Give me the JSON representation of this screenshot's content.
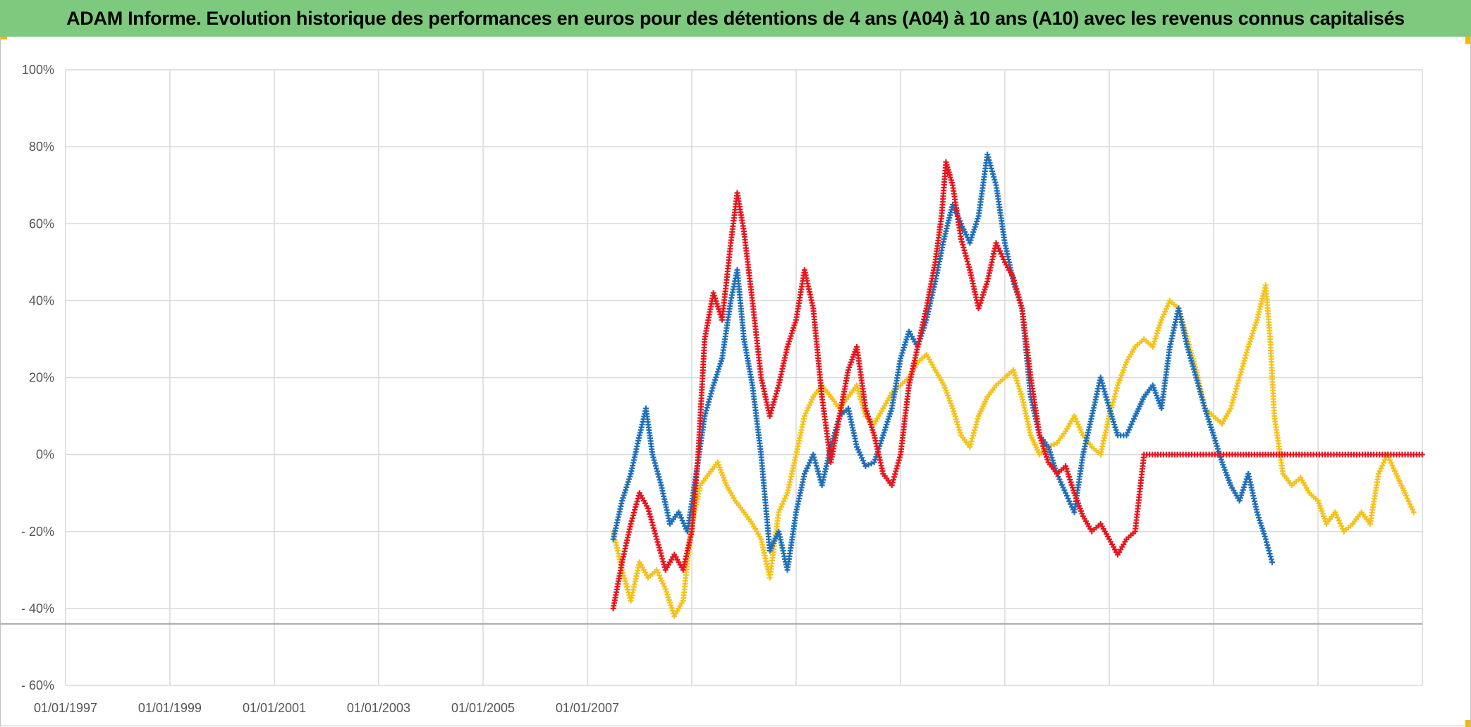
{
  "title": "ADAM Informe. Evolution historique des performances en euros pour des détentions de 4 ans (A04) à 10 ans (A10) avec les revenus connus capitalisés",
  "colors": {
    "title_bg": "#7dc97d",
    "accent_corner": "#f2b800",
    "series_red": "#e8141c",
    "series_blue": "#1f6fb8",
    "series_yellow": "#f5c21b",
    "grid": "#d9d9d9",
    "reference_line": "#a6a6a6"
  },
  "chart_data": {
    "type": "scatter",
    "marker": "plus",
    "title": "ADAM Informe. Evolution historique des performances en euros pour des détentions de 4 ans (A04) à 10 ans (A10) avec les revenus connus capitalisés",
    "xlabel": "",
    "ylabel": "",
    "x_tick_labels": [
      "01/01/1997",
      "01/01/1999",
      "01/01/2001",
      "01/01/2003",
      "01/01/2005",
      "01/01/2007"
    ],
    "xlim": [
      "1997-01-01",
      "2023-01-01"
    ],
    "x_gridlines_years": [
      1997,
      1999,
      2001,
      2003,
      2005,
      2007,
      2009,
      2011,
      2013,
      2015,
      2017,
      2019,
      2021,
      2023
    ],
    "y_tick_labels": [
      "100%",
      "80%",
      "60%",
      "40%",
      "20%",
      "0%",
      "- 20%",
      "- 40%",
      "- 60%"
    ],
    "y_ticks": [
      100,
      80,
      60,
      40,
      20,
      0,
      -20,
      -40,
      -60
    ],
    "ylim": [
      -60,
      100
    ],
    "grid": true,
    "legend": "none",
    "reference_line_y": -44,
    "series": [
      {
        "color": "#e8141c",
        "points": [
          [
            "2007-07-01",
            -40
          ],
          [
            "2007-09-01",
            -28
          ],
          [
            "2007-11-01",
            -18
          ],
          [
            "2008-01-01",
            -10
          ],
          [
            "2008-03-01",
            -14
          ],
          [
            "2008-05-01",
            -22
          ],
          [
            "2008-07-01",
            -30
          ],
          [
            "2008-09-01",
            -26
          ],
          [
            "2008-11-01",
            -30
          ],
          [
            "2009-01-01",
            -20
          ],
          [
            "2009-02-15",
            0
          ],
          [
            "2009-04-01",
            30
          ],
          [
            "2009-06-01",
            42
          ],
          [
            "2009-08-01",
            35
          ],
          [
            "2009-10-01",
            55
          ],
          [
            "2009-11-15",
            68
          ],
          [
            "2010-01-01",
            58
          ],
          [
            "2010-03-01",
            40
          ],
          [
            "2010-05-01",
            20
          ],
          [
            "2010-07-01",
            10
          ],
          [
            "2010-09-01",
            18
          ],
          [
            "2010-11-01",
            28
          ],
          [
            "2011-01-01",
            35
          ],
          [
            "2011-03-01",
            48
          ],
          [
            "2011-05-01",
            38
          ],
          [
            "2011-07-01",
            15
          ],
          [
            "2011-09-01",
            -2
          ],
          [
            "2011-11-01",
            10
          ],
          [
            "2012-01-01",
            22
          ],
          [
            "2012-03-01",
            28
          ],
          [
            "2012-05-01",
            12
          ],
          [
            "2012-07-01",
            5
          ],
          [
            "2012-09-01",
            -5
          ],
          [
            "2012-11-01",
            -8
          ],
          [
            "2013-01-01",
            0
          ],
          [
            "2013-03-01",
            18
          ],
          [
            "2013-05-01",
            28
          ],
          [
            "2013-07-01",
            38
          ],
          [
            "2013-09-01",
            50
          ],
          [
            "2013-10-15",
            62
          ],
          [
            "2013-11-15",
            76
          ],
          [
            "2014-01-01",
            70
          ],
          [
            "2014-03-01",
            56
          ],
          [
            "2014-05-01",
            48
          ],
          [
            "2014-07-01",
            38
          ],
          [
            "2014-09-01",
            45
          ],
          [
            "2014-11-01",
            55
          ],
          [
            "2015-01-01",
            50
          ],
          [
            "2015-03-01",
            46
          ],
          [
            "2015-05-01",
            38
          ],
          [
            "2015-07-01",
            20
          ],
          [
            "2015-09-01",
            5
          ],
          [
            "2015-11-01",
            -2
          ],
          [
            "2016-01-01",
            -5
          ],
          [
            "2016-03-01",
            -3
          ],
          [
            "2016-05-01",
            -10
          ],
          [
            "2016-07-01",
            -16
          ],
          [
            "2016-09-01",
            -20
          ],
          [
            "2016-11-01",
            -18
          ],
          [
            "2017-01-01",
            -22
          ],
          [
            "2017-03-01",
            -26
          ],
          [
            "2017-05-01",
            -22
          ],
          [
            "2017-07-01",
            -20
          ],
          [
            "2017-09-01",
            0
          ],
          [
            "2018-06-01",
            0
          ],
          [
            "2019-06-01",
            0
          ],
          [
            "2020-06-01",
            0
          ],
          [
            "2021-06-01",
            0
          ],
          [
            "2022-12-31",
            0
          ]
        ]
      },
      {
        "color": "#1f6fb8",
        "points": [
          [
            "2007-07-01",
            -22
          ],
          [
            "2007-09-01",
            -12
          ],
          [
            "2007-11-01",
            -5
          ],
          [
            "2008-01-01",
            5
          ],
          [
            "2008-02-15",
            12
          ],
          [
            "2008-04-01",
            0
          ],
          [
            "2008-06-01",
            -8
          ],
          [
            "2008-08-01",
            -18
          ],
          [
            "2008-10-01",
            -15
          ],
          [
            "2008-12-01",
            -20
          ],
          [
            "2009-02-01",
            -5
          ],
          [
            "2009-04-01",
            10
          ],
          [
            "2009-06-01",
            18
          ],
          [
            "2009-08-01",
            25
          ],
          [
            "2009-10-01",
            40
          ],
          [
            "2009-11-15",
            48
          ],
          [
            "2010-01-01",
            30
          ],
          [
            "2010-03-01",
            18
          ],
          [
            "2010-05-01",
            0
          ],
          [
            "2010-07-01",
            -25
          ],
          [
            "2010-09-01",
            -20
          ],
          [
            "2010-11-01",
            -30
          ],
          [
            "2011-01-01",
            -15
          ],
          [
            "2011-03-01",
            -5
          ],
          [
            "2011-05-01",
            0
          ],
          [
            "2011-07-01",
            -8
          ],
          [
            "2011-09-01",
            2
          ],
          [
            "2011-11-01",
            10
          ],
          [
            "2012-01-01",
            12
          ],
          [
            "2012-03-01",
            2
          ],
          [
            "2012-05-01",
            -3
          ],
          [
            "2012-07-01",
            -2
          ],
          [
            "2012-09-01",
            5
          ],
          [
            "2012-11-01",
            12
          ],
          [
            "2013-01-01",
            25
          ],
          [
            "2013-03-01",
            32
          ],
          [
            "2013-05-01",
            28
          ],
          [
            "2013-07-01",
            35
          ],
          [
            "2013-09-01",
            45
          ],
          [
            "2013-11-01",
            56
          ],
          [
            "2014-01-01",
            65
          ],
          [
            "2014-03-01",
            60
          ],
          [
            "2014-05-01",
            55
          ],
          [
            "2014-07-01",
            62
          ],
          [
            "2014-09-01",
            78
          ],
          [
            "2014-11-01",
            70
          ],
          [
            "2015-01-01",
            55
          ],
          [
            "2015-03-01",
            45
          ],
          [
            "2015-05-01",
            38
          ],
          [
            "2015-07-01",
            15
          ],
          [
            "2015-09-01",
            5
          ],
          [
            "2015-11-01",
            2
          ],
          [
            "2016-01-01",
            -5
          ],
          [
            "2016-03-01",
            -10
          ],
          [
            "2016-05-01",
            -15
          ],
          [
            "2016-07-01",
            0
          ],
          [
            "2016-09-01",
            10
          ],
          [
            "2016-11-01",
            20
          ],
          [
            "2017-01-01",
            12
          ],
          [
            "2017-03-01",
            5
          ],
          [
            "2017-05-01",
            5
          ],
          [
            "2017-07-01",
            10
          ],
          [
            "2017-09-01",
            15
          ],
          [
            "2017-11-01",
            18
          ],
          [
            "2018-01-01",
            12
          ],
          [
            "2018-03-01",
            28
          ],
          [
            "2018-05-01",
            38
          ],
          [
            "2018-07-01",
            28
          ],
          [
            "2018-09-01",
            20
          ],
          [
            "2018-11-01",
            12
          ],
          [
            "2019-01-01",
            5
          ],
          [
            "2019-03-01",
            -2
          ],
          [
            "2019-05-01",
            -8
          ],
          [
            "2019-07-01",
            -12
          ],
          [
            "2019-09-01",
            -5
          ],
          [
            "2019-11-01",
            -15
          ],
          [
            "2020-01-01",
            -22
          ],
          [
            "2020-02-15",
            -28
          ]
        ]
      },
      {
        "color": "#f5c21b",
        "points": [
          [
            "2007-07-01",
            -20
          ],
          [
            "2007-09-01",
            -30
          ],
          [
            "2007-11-01",
            -38
          ],
          [
            "2008-01-01",
            -28
          ],
          [
            "2008-03-01",
            -32
          ],
          [
            "2008-05-01",
            -30
          ],
          [
            "2008-07-01",
            -35
          ],
          [
            "2008-09-01",
            -42
          ],
          [
            "2008-11-01",
            -38
          ],
          [
            "2009-01-01",
            -18
          ],
          [
            "2009-03-01",
            -8
          ],
          [
            "2009-05-01",
            -5
          ],
          [
            "2009-07-01",
            -2
          ],
          [
            "2009-09-01",
            -8
          ],
          [
            "2009-11-01",
            -12
          ],
          [
            "2010-01-01",
            -15
          ],
          [
            "2010-03-01",
            -18
          ],
          [
            "2010-05-01",
            -22
          ],
          [
            "2010-07-01",
            -32
          ],
          [
            "2010-09-01",
            -15
          ],
          [
            "2010-11-01",
            -10
          ],
          [
            "2011-01-01",
            0
          ],
          [
            "2011-03-01",
            10
          ],
          [
            "2011-05-01",
            15
          ],
          [
            "2011-07-01",
            18
          ],
          [
            "2011-09-01",
            15
          ],
          [
            "2011-11-01",
            12
          ],
          [
            "2012-01-01",
            15
          ],
          [
            "2012-03-01",
            18
          ],
          [
            "2012-05-01",
            10
          ],
          [
            "2012-07-01",
            8
          ],
          [
            "2012-09-01",
            12
          ],
          [
            "2012-11-01",
            16
          ],
          [
            "2013-01-01",
            18
          ],
          [
            "2013-03-01",
            20
          ],
          [
            "2013-05-01",
            24
          ],
          [
            "2013-07-01",
            26
          ],
          [
            "2013-09-01",
            22
          ],
          [
            "2013-11-01",
            18
          ],
          [
            "2014-01-01",
            12
          ],
          [
            "2014-03-01",
            5
          ],
          [
            "2014-05-01",
            2
          ],
          [
            "2014-07-01",
            10
          ],
          [
            "2014-09-01",
            15
          ],
          [
            "2014-11-01",
            18
          ],
          [
            "2015-01-01",
            20
          ],
          [
            "2015-03-01",
            22
          ],
          [
            "2015-05-01",
            15
          ],
          [
            "2015-07-01",
            5
          ],
          [
            "2015-09-01",
            0
          ],
          [
            "2015-11-01",
            2
          ],
          [
            "2016-01-01",
            3
          ],
          [
            "2016-03-01",
            6
          ],
          [
            "2016-05-01",
            10
          ],
          [
            "2016-07-01",
            5
          ],
          [
            "2016-09-01",
            2
          ],
          [
            "2016-11-01",
            0
          ],
          [
            "2017-01-01",
            10
          ],
          [
            "2017-03-01",
            18
          ],
          [
            "2017-05-01",
            24
          ],
          [
            "2017-07-01",
            28
          ],
          [
            "2017-09-01",
            30
          ],
          [
            "2017-11-01",
            28
          ],
          [
            "2018-01-01",
            35
          ],
          [
            "2018-03-01",
            40
          ],
          [
            "2018-05-01",
            38
          ],
          [
            "2018-07-01",
            30
          ],
          [
            "2018-09-01",
            22
          ],
          [
            "2018-11-01",
            12
          ],
          [
            "2019-01-01",
            10
          ],
          [
            "2019-03-01",
            8
          ],
          [
            "2019-05-01",
            12
          ],
          [
            "2019-07-01",
            20
          ],
          [
            "2019-09-01",
            28
          ],
          [
            "2019-11-01",
            35
          ],
          [
            "2020-01-01",
            44
          ],
          [
            "2020-02-01",
            30
          ],
          [
            "2020-03-01",
            10
          ],
          [
            "2020-05-01",
            -5
          ],
          [
            "2020-07-01",
            -8
          ],
          [
            "2020-09-01",
            -6
          ],
          [
            "2020-11-01",
            -10
          ],
          [
            "2021-01-01",
            -12
          ],
          [
            "2021-03-01",
            -18
          ],
          [
            "2021-05-01",
            -15
          ],
          [
            "2021-07-01",
            -20
          ],
          [
            "2021-09-01",
            -18
          ],
          [
            "2021-11-01",
            -15
          ],
          [
            "2022-01-01",
            -18
          ],
          [
            "2022-03-01",
            -5
          ],
          [
            "2022-05-01",
            0
          ],
          [
            "2022-07-01",
            -5
          ],
          [
            "2022-09-01",
            -10
          ],
          [
            "2022-11-01",
            -15
          ]
        ]
      }
    ]
  }
}
